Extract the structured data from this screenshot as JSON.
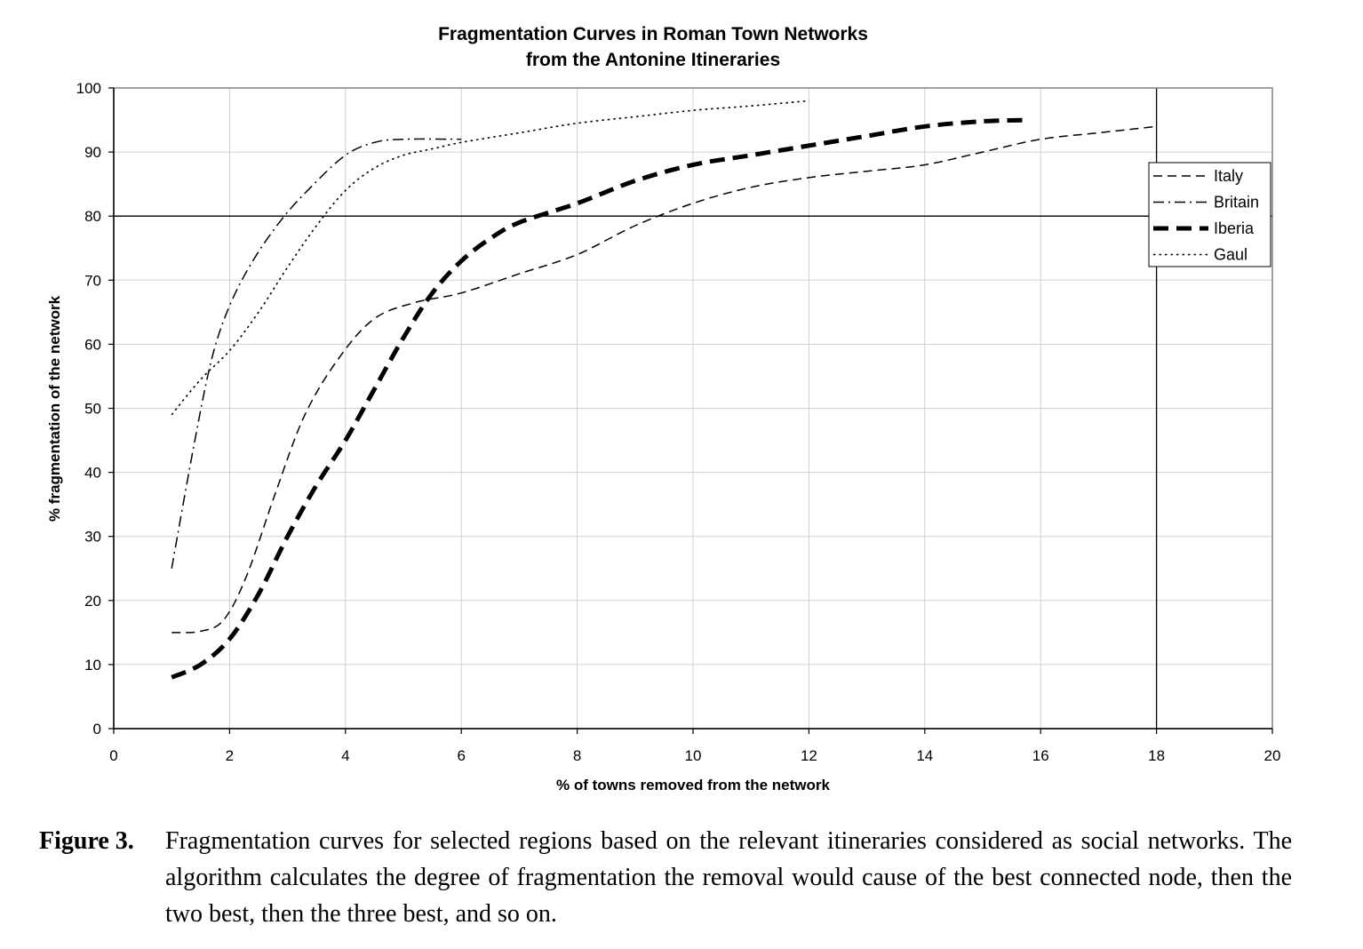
{
  "chart_data": {
    "type": "line",
    "title": [
      "Fragmentation Curves in Roman Town Networks",
      "from the Antonine Itineraries"
    ],
    "xlabel": "% of towns removed from the network",
    "ylabel": "% fragmentation of the network",
    "xlim": [
      0,
      20
    ],
    "ylim": [
      0,
      100
    ],
    "x_ticks": [
      0,
      2,
      4,
      6,
      8,
      10,
      12,
      14,
      16,
      18,
      20
    ],
    "y_ticks": [
      0,
      10,
      20,
      30,
      40,
      50,
      60,
      70,
      80,
      90,
      100
    ],
    "grid": true,
    "reference_lines": {
      "y": 80,
      "x": 18
    },
    "legend_position": "right",
    "series": [
      {
        "name": "Italy",
        "style": "dash",
        "x": [
          1,
          1.5,
          1.9,
          2.3,
          2.8,
          3.3,
          3.9,
          4.5,
          5.2,
          6,
          7,
          8,
          9,
          10,
          11,
          12,
          13,
          14,
          15,
          16,
          17,
          18
        ],
        "y": [
          15,
          15.2,
          17,
          24,
          37,
          49,
          58,
          64,
          66.5,
          68,
          71,
          74,
          78.5,
          82,
          84.5,
          86,
          87,
          88,
          90,
          92,
          93,
          94
        ]
      },
      {
        "name": "Britain",
        "style": "dashdot",
        "x": [
          1,
          1.4,
          1.7,
          2,
          2.4,
          2.9,
          3.4,
          4,
          4.5,
          5,
          6
        ],
        "y": [
          25,
          45,
          58,
          66,
          73,
          79.5,
          84.5,
          89.5,
          91.5,
          92,
          92
        ]
      },
      {
        "name": "Iberia",
        "style": "heavy-dash",
        "x": [
          1,
          1.5,
          2,
          2.5,
          3,
          3.5,
          4,
          4.5,
          5,
          5.5,
          6,
          6.5,
          7,
          8,
          9,
          10,
          11,
          12,
          13,
          14,
          15,
          15.8
        ],
        "y": [
          8,
          10,
          14,
          21,
          30,
          38,
          45,
          53,
          61,
          68,
          73,
          76.5,
          79,
          82,
          85.5,
          88,
          89.5,
          91,
          92.5,
          94,
          94.8,
          95
        ]
      },
      {
        "name": "Gaul",
        "style": "dot",
        "x": [
          1,
          1.5,
          2,
          2.5,
          3,
          3.5,
          4,
          4.5,
          5,
          5.5,
          6,
          7,
          8,
          9,
          10,
          11,
          12
        ],
        "y": [
          49,
          54.5,
          59,
          65,
          72,
          78.5,
          84,
          87.5,
          89.5,
          90.5,
          91.5,
          93,
          94.5,
          95.5,
          96.5,
          97.2,
          98
        ]
      }
    ]
  },
  "caption": {
    "label": "Figure 3.",
    "text": "Fragmentation curves for selected regions based on the relevant itineraries considered as social networks. The algorithm calculates the degree of fragmentation the removal would cause of the best connected node, then the two best, then the three best, and so on."
  },
  "colors": {
    "ink": "#000000",
    "grid": "#d0d0d0",
    "frame": "#808080"
  }
}
